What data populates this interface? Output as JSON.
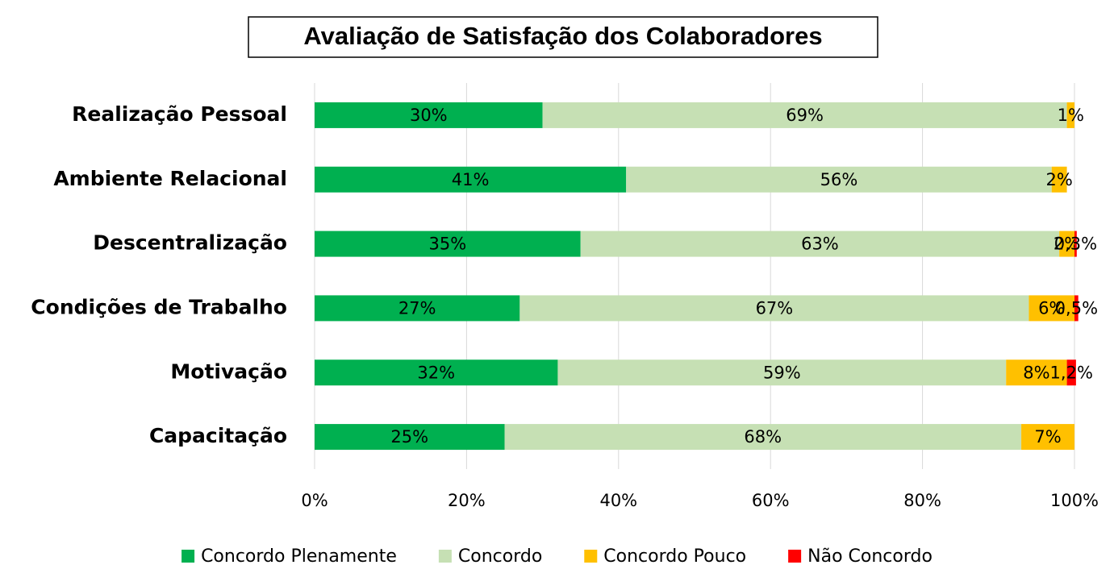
{
  "chart_data": {
    "type": "stacked-bar-horizontal",
    "title": "Avaliação de Satisfação dos Colaboradores",
    "categories": [
      "Realização Pessoal",
      "Ambiente Relacional",
      "Descentralização",
      "Condições de Trabalho",
      "Motivação",
      "Capacitação"
    ],
    "series": [
      {
        "name": "Concordo Plenamente",
        "color": "#00b050",
        "values": [
          30,
          41,
          35,
          27,
          32,
          25
        ],
        "value_labels": [
          "30%",
          "41%",
          "35%",
          "27%",
          "32%",
          "25%"
        ]
      },
      {
        "name": "Concordo",
        "color": "#c6e0b4",
        "values": [
          69,
          56,
          63,
          67,
          59,
          68
        ],
        "value_labels": [
          "69%",
          "56%",
          "63%",
          "67%",
          "59%",
          "68%"
        ]
      },
      {
        "name": "Concordo Pouco",
        "color": "#ffc000",
        "values": [
          1,
          2,
          2,
          6,
          8,
          7
        ],
        "value_labels": [
          "1%",
          "2%",
          "2%",
          "6%",
          "8%",
          "7%"
        ]
      },
      {
        "name": "Não Concordo",
        "color": "#ff0000",
        "values": [
          null,
          null,
          0.3,
          0.5,
          1.2,
          null
        ],
        "value_labels": [
          null,
          null,
          "0,3%",
          "0,5%",
          "1,2%",
          null
        ]
      }
    ],
    "xlim": [
      0,
      100
    ],
    "xticks": [
      {
        "value": 0,
        "label": "0%"
      },
      {
        "value": 20,
        "label": "20%"
      },
      {
        "value": 40,
        "label": "40%"
      },
      {
        "value": 60,
        "label": "60%"
      },
      {
        "value": 80,
        "label": "80%"
      },
      {
        "value": 100,
        "label": "100%"
      }
    ],
    "grid": true,
    "legend": "bottom"
  }
}
